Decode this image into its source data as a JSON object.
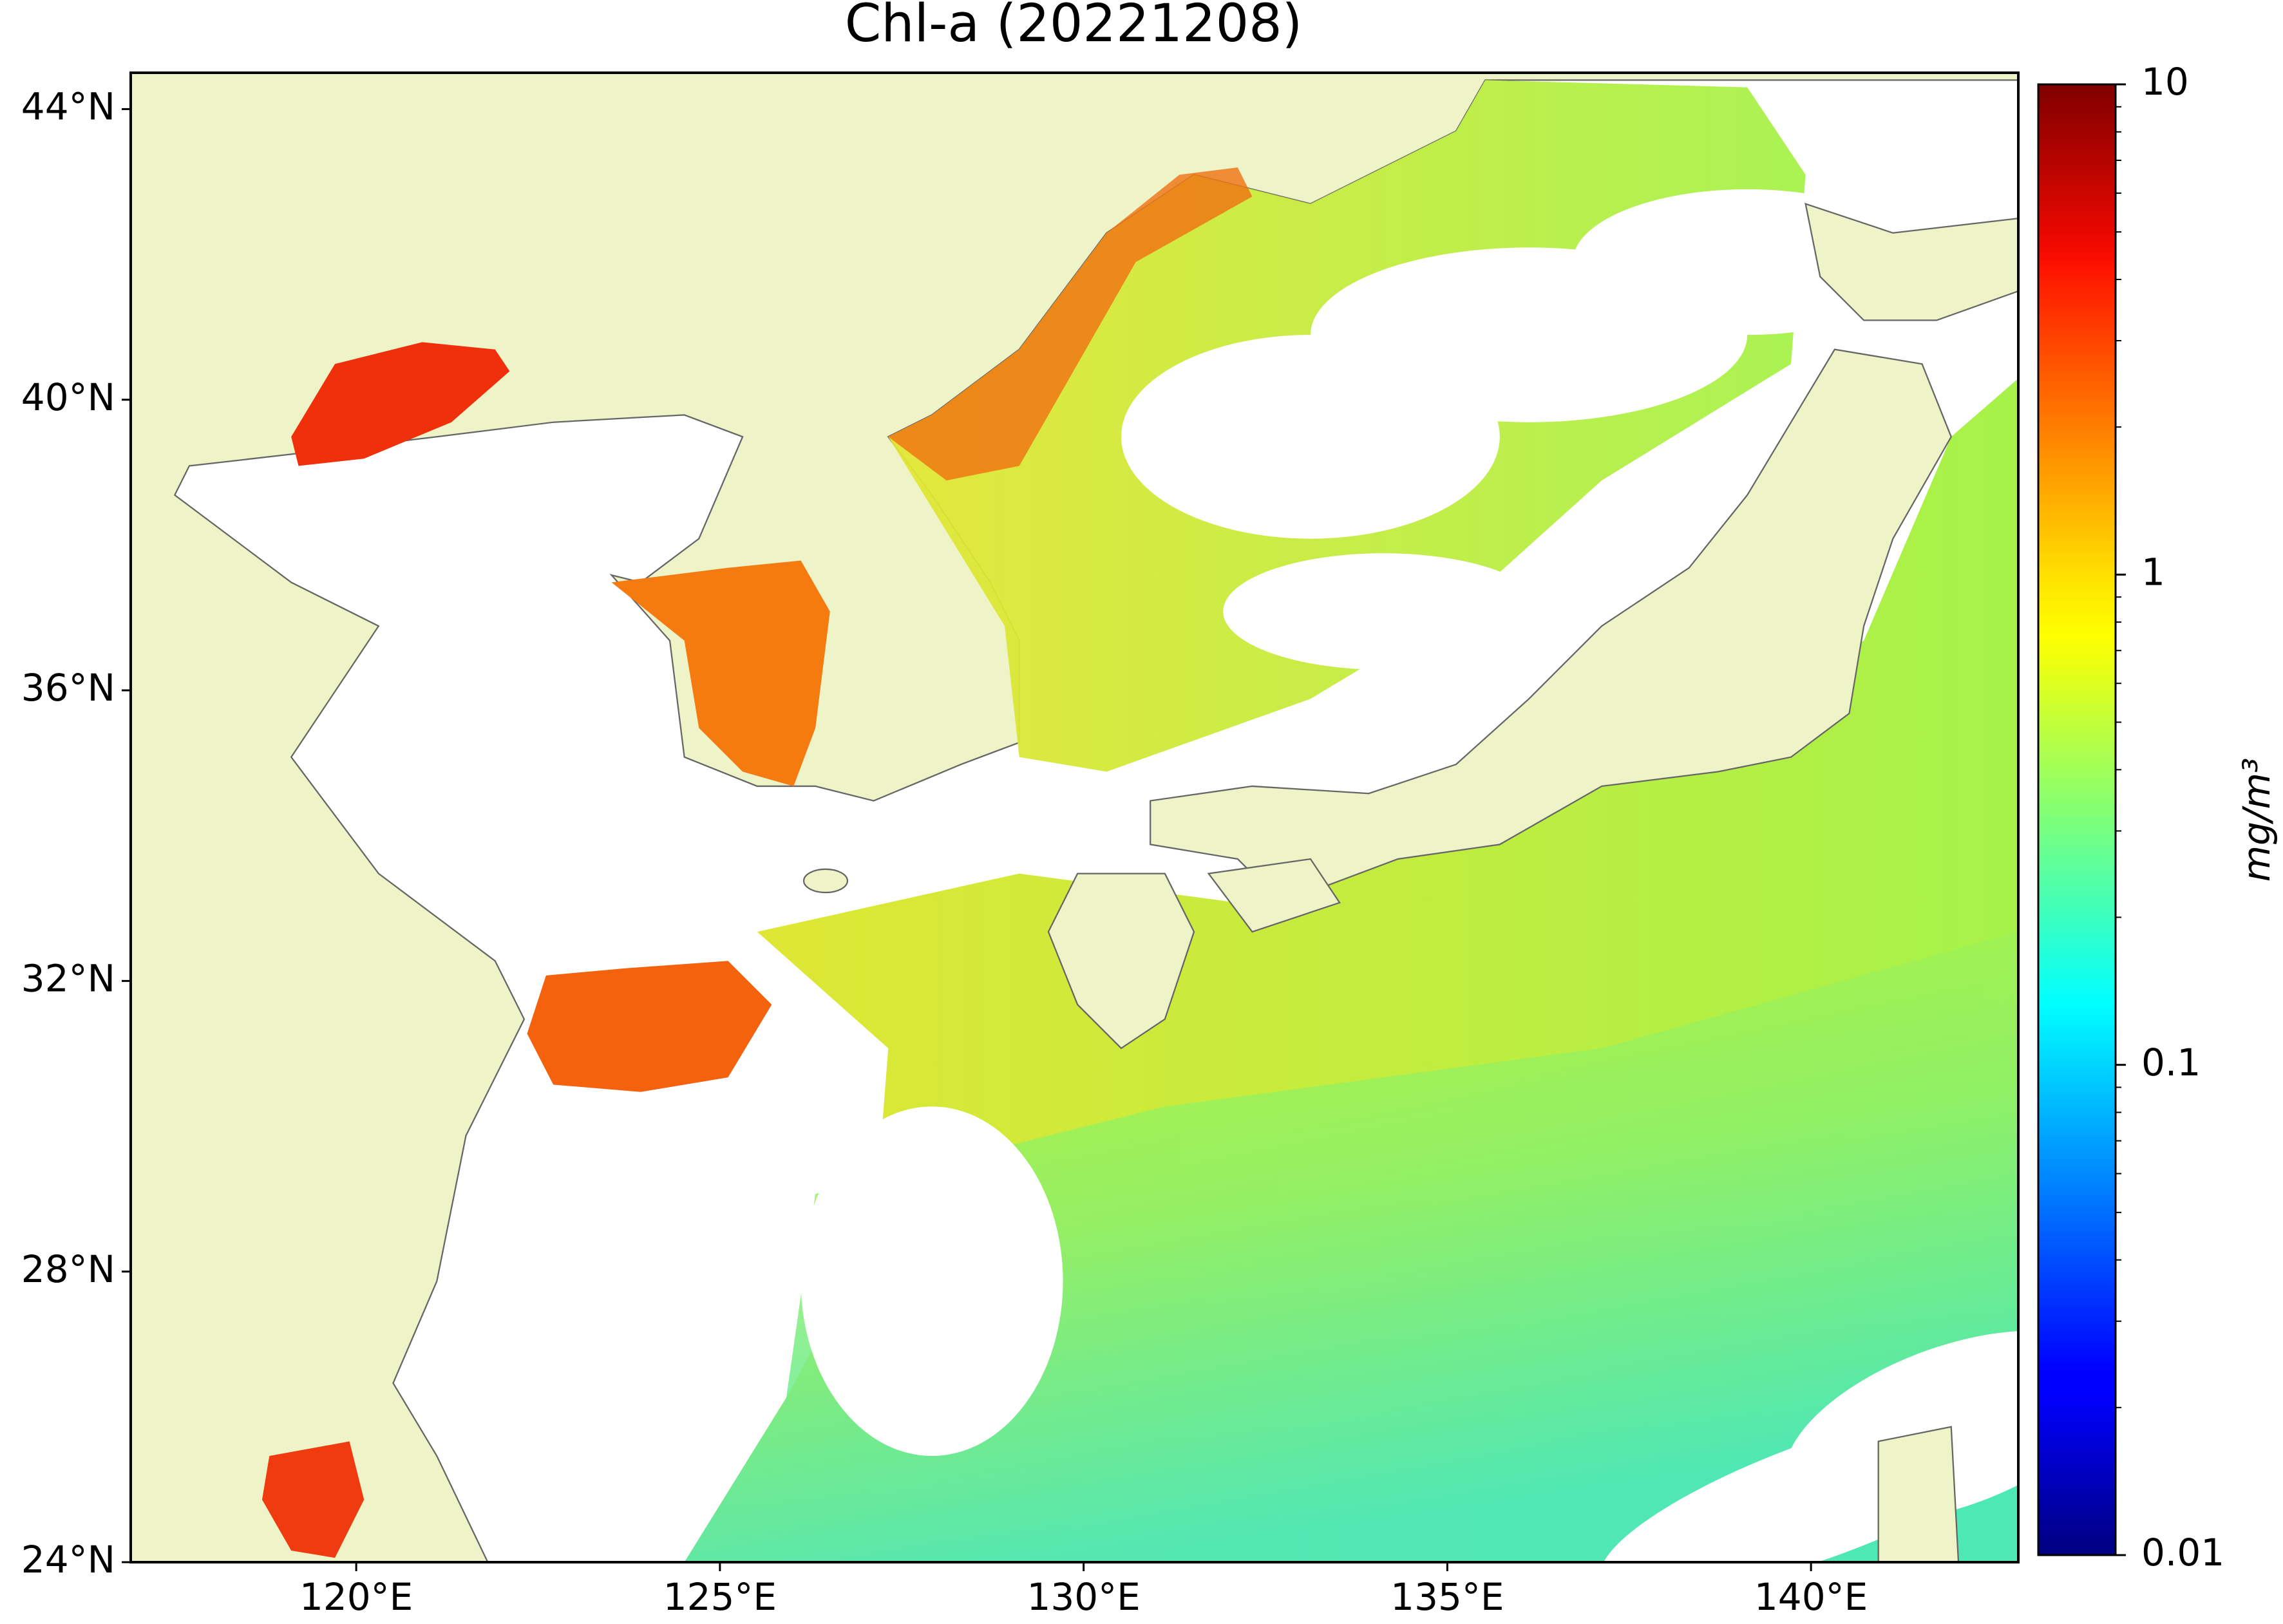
{
  "map": {
    "title": "Chl-a (20221208)",
    "xlim": [
      116.9,
      142.85
    ],
    "ylim": [
      24,
      44.5
    ],
    "xticks": [
      {
        "value": 120,
        "label": "120°E"
      },
      {
        "value": 125,
        "label": "125°E"
      },
      {
        "value": 130,
        "label": "130°E"
      },
      {
        "value": 135,
        "label": "135°E"
      },
      {
        "value": 140,
        "label": "140°E"
      }
    ],
    "yticks": [
      {
        "value": 24,
        "label": "24°N"
      },
      {
        "value": 28,
        "label": "28°N"
      },
      {
        "value": 32,
        "label": "32°N"
      },
      {
        "value": 36,
        "label": "36°N"
      },
      {
        "value": 40,
        "label": "40°N"
      },
      {
        "value": 44,
        "label": "44°N"
      }
    ],
    "colorbar": {
      "label": "mg/m³",
      "scale": "log",
      "colormap": "jet",
      "lim": [
        0.01,
        10
      ],
      "ticks": [
        0.01,
        0.1,
        1,
        10
      ],
      "minor_ticks": [
        0.02,
        0.03,
        0.04,
        0.05,
        0.06,
        0.07,
        0.08,
        0.09,
        0.2,
        0.3,
        0.4,
        0.5,
        0.6,
        0.7,
        0.8,
        0.9,
        2,
        3,
        4,
        5,
        6,
        7,
        8,
        9
      ]
    }
  }
}
